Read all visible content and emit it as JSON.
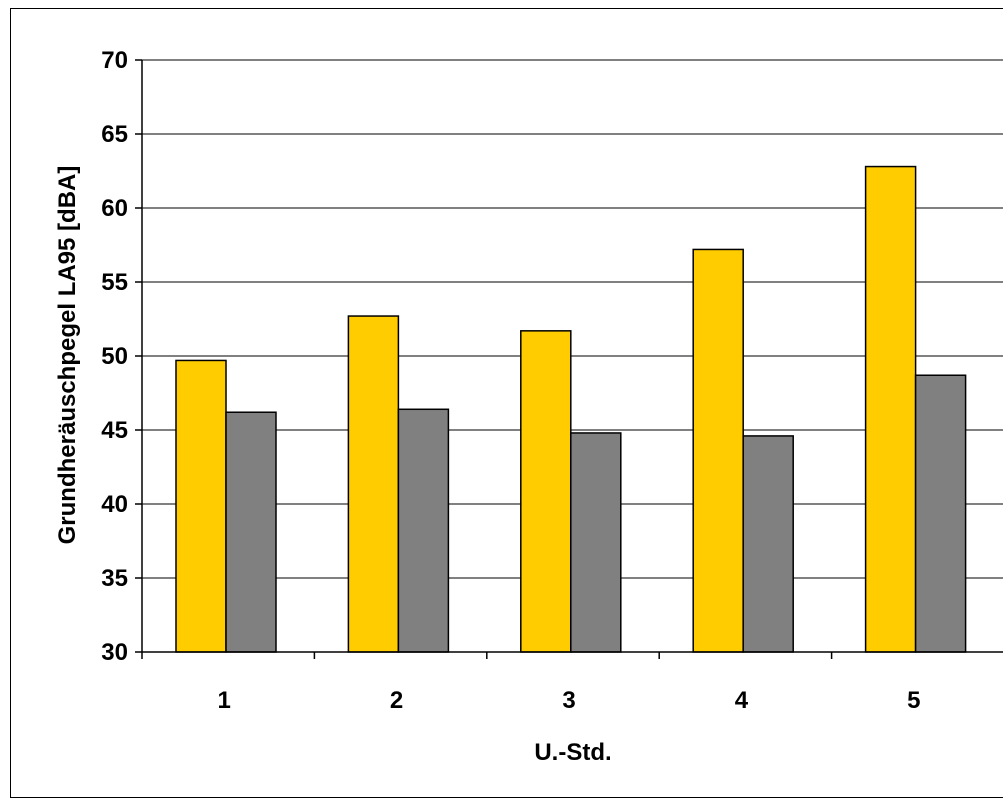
{
  "chart_data": {
    "type": "bar",
    "title": "",
    "xlabel": "U.-Std.",
    "ylabel": "Grundheräuschpegel LA95 [dBA]",
    "categories": [
      "1",
      "2",
      "3",
      "4",
      "5"
    ],
    "ylim": [
      30,
      70
    ],
    "yticks": [
      30,
      35,
      40,
      45,
      50,
      55,
      60,
      65,
      70
    ],
    "grid": true,
    "legend": "none",
    "series": [
      {
        "values": [
          49.7,
          52.7,
          51.7,
          57.2,
          62.8
        ],
        "color": "#ffcc00"
      },
      {
        "values": [
          46.2,
          46.4,
          44.8,
          44.6,
          48.7
        ],
        "color": "#808080"
      }
    ]
  }
}
